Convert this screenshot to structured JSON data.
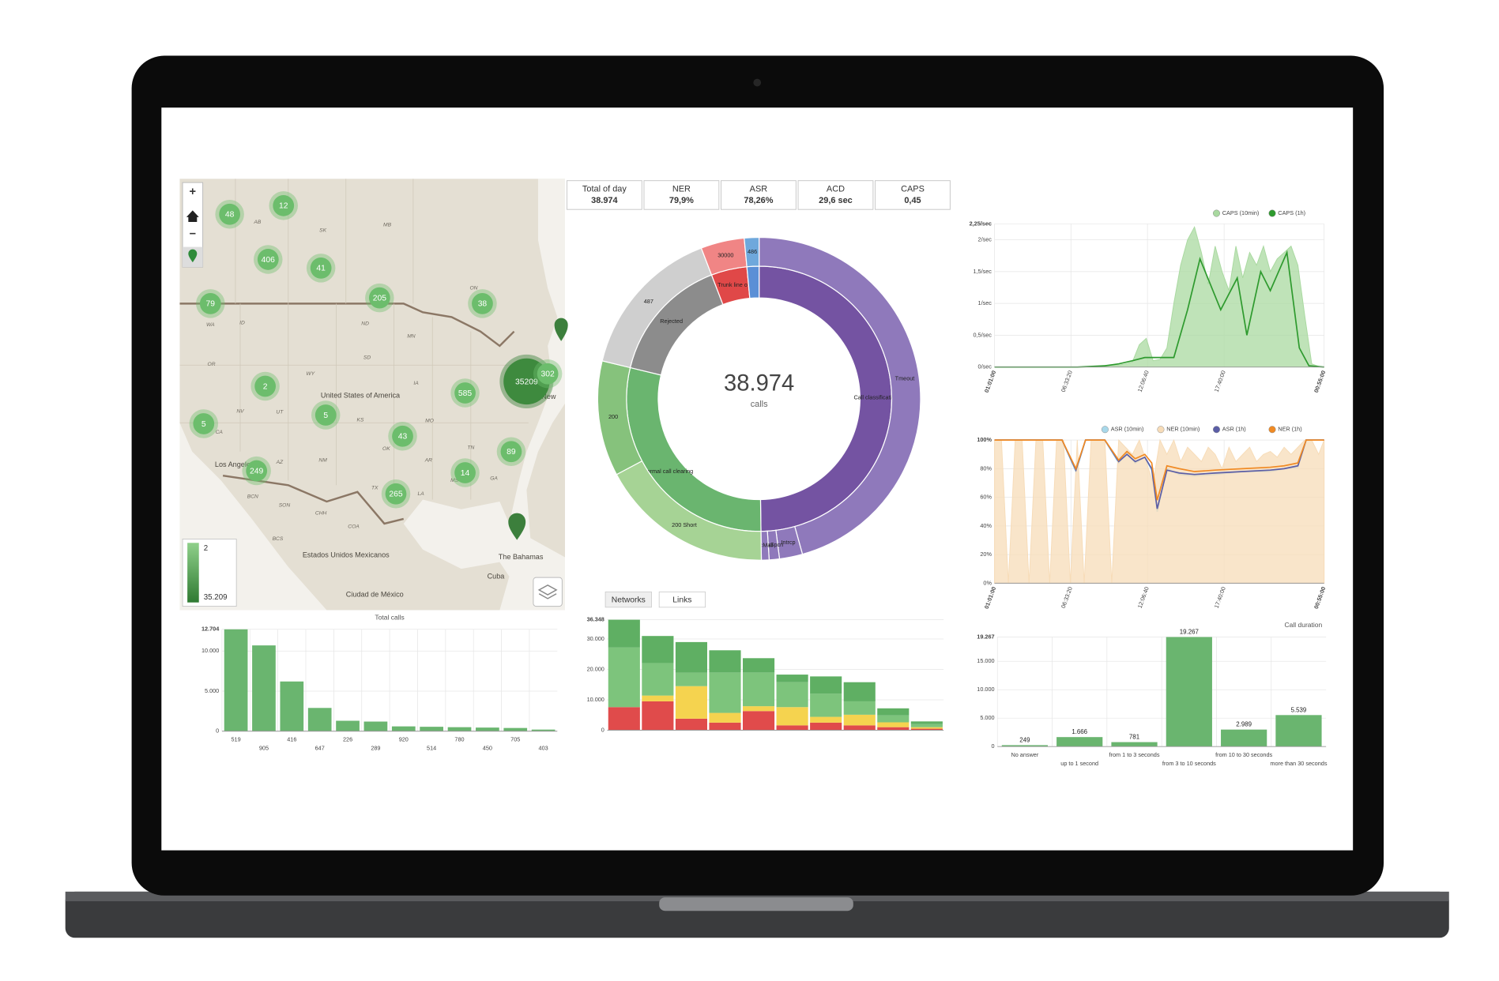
{
  "stats": [
    {
      "label": "Total of day",
      "value": "38.974"
    },
    {
      "label": "NER",
      "value": "79,9%"
    },
    {
      "label": "ASR",
      "value": "78,26%"
    },
    {
      "label": "ACD",
      "value": "29,6 sec"
    },
    {
      "label": "CAPS",
      "value": "0,45"
    }
  ],
  "map": {
    "clusters": [
      48,
      12,
      406,
      41,
      205,
      38,
      79,
      2,
      5,
      585,
      35209,
      302,
      5,
      43,
      89,
      14,
      249,
      265
    ],
    "places": [
      "AB",
      "SK",
      "MB",
      "ON",
      "WA",
      "ID",
      "ND",
      "MN",
      "OR",
      "SD",
      "WY",
      "IA",
      "NV",
      "UT",
      "KS",
      "MO",
      "CA",
      "OK",
      "AZ",
      "NM",
      "TN",
      "AR",
      "MS",
      "GA",
      "TX",
      "LA",
      "BCN",
      "SON",
      "CHH",
      "COA",
      "BCS",
      "United States of America",
      "Estados Unidos Mexicanos",
      "Ciudad de México",
      "Los Angeles",
      "The Bahamas",
      "Cuba",
      "New"
    ],
    "legend": {
      "min": "2",
      "max": "35.209"
    },
    "controls": [
      "+",
      "−"
    ]
  },
  "chart_data": [
    {
      "type": "bar",
      "title": "Total calls",
      "categories": [
        "519",
        "905",
        "416",
        "647",
        "226",
        "289",
        "920",
        "514",
        "780",
        "450",
        "705",
        "403"
      ],
      "values": [
        12704,
        10700,
        6200,
        2900,
        1300,
        1200,
        600,
        550,
        500,
        450,
        400,
        200
      ],
      "color": "#6ab56f",
      "ylim": [
        0,
        12704
      ],
      "yticks": [
        0,
        {
          "value": 5000,
          "label": "5.000"
        },
        {
          "value": 10000,
          "label": "10.000"
        },
        {
          "value": 12704,
          "label": "12.704"
        }
      ],
      "grid": true
    },
    {
      "type": "stacked_bar",
      "tabs": [
        "Networks",
        "Links"
      ],
      "series": [
        {
          "color": "#e04b4b",
          "values": [
            7600,
            9500,
            3800,
            2500,
            6300,
            1600,
            2500,
            1600,
            1000,
            500
          ]
        },
        {
          "color": "#f5d34f",
          "values": [
            0,
            1900,
            10700,
            3200,
            1600,
            6000,
            1900,
            3500,
            1600,
            500
          ]
        },
        {
          "color": "#7dc47c",
          "values": [
            19600,
            10700,
            4400,
            13300,
            11100,
            8200,
            7600,
            4400,
            2300,
            1000
          ]
        },
        {
          "color": "#5faf63",
          "values": [
            9148,
            8900,
            10100,
            7300,
            4700,
            2500,
            5700,
            6300,
            2300,
            900
          ]
        }
      ],
      "ylim": [
        0,
        36348
      ],
      "yticks": [
        0,
        {
          "value": 10000,
          "label": "10.000"
        },
        {
          "value": 20000,
          "label": "20.000"
        },
        {
          "value": 30000,
          "label": "30.000"
        },
        {
          "value": 36348,
          "label": "36.348"
        }
      ],
      "grid": true
    },
    {
      "type": "line",
      "series": [
        {
          "name": "CAPS (10min)",
          "color": "#a9d9a0",
          "style": "area",
          "x": [
            0,
            0.5,
            1,
            1.5,
            2,
            2.5,
            3,
            3.5,
            4,
            4.5,
            5,
            5.5,
            6,
            6.5,
            7,
            7.5,
            8,
            8.5,
            9,
            9.5,
            10,
            10.5,
            11,
            11.5,
            12,
            12.5,
            13,
            13.5,
            14,
            14.5,
            15,
            15.5,
            16,
            16.5,
            17,
            17.5,
            18,
            18.5,
            19,
            19.5,
            20,
            20.5,
            21,
            21.5,
            22,
            22.5,
            23,
            23.5,
            23.9
          ],
          "values": [
            0,
            0,
            0,
            0,
            0,
            0,
            0,
            0,
            0,
            0,
            0,
            0,
            0,
            0,
            0,
            0,
            0.02,
            0.03,
            0.03,
            0.05,
            0.08,
            0.35,
            0.45,
            0.1,
            0.12,
            0.3,
            1.0,
            1.6,
            2.0,
            2.2,
            1.8,
            1.3,
            1.9,
            1.5,
            1.2,
            1.9,
            1.4,
            1.8,
            1.6,
            1.9,
            1.5,
            1.7,
            1.8,
            1.9,
            1.6,
            0.8,
            0.05,
            0.01,
            0
          ]
        },
        {
          "name": "CAPS (1h)",
          "color": "#2e9a2e",
          "style": "line",
          "x": [
            0,
            2,
            4,
            6,
            8,
            9,
            10,
            10.9,
            12,
            13,
            14,
            14.9,
            16.4,
            17.6,
            18.3,
            19.3,
            20,
            21.2,
            22.1,
            22.8,
            23.9
          ],
          "values": [
            0,
            0,
            0,
            0,
            0.02,
            0.05,
            0.1,
            0.15,
            0.15,
            0.15,
            0.9,
            1.7,
            0.9,
            1.4,
            0.5,
            1.5,
            1.2,
            1.8,
            0.3,
            0.02,
            0
          ]
        }
      ],
      "xlim": [
        0,
        23.9
      ],
      "xticks": [
        {
          "value": 0,
          "label": "01:01:00"
        },
        {
          "value": 5.54,
          "label": "06:33:20"
        },
        {
          "value": 11.09,
          "label": "12:06:40"
        },
        {
          "value": 16.65,
          "label": "17:40:00"
        },
        {
          "value": 23.9,
          "label": "00:55:00"
        }
      ],
      "ylim": [
        0,
        2.25
      ],
      "yticks": [
        {
          "value": 0,
          "label": "0/sec"
        },
        {
          "value": 0.5,
          "label": "0,5/sec"
        },
        {
          "value": 1,
          "label": "1/sec"
        },
        {
          "value": 1.5,
          "label": "1,5/sec"
        },
        {
          "value": 2,
          "label": "2/sec"
        },
        {
          "value": 2.25,
          "label": "2,25/sec"
        }
      ],
      "grid": true
    },
    {
      "type": "line",
      "series": [
        {
          "name": "ASR (10min)",
          "color": "#a8d8ea",
          "style": "line",
          "x": [
            0,
            4.9,
            5.9,
            6.6,
            8,
            9,
            9.6,
            10.2,
            10.9,
            11.4,
            11.8,
            12.5,
            13.4,
            14.5,
            16,
            18,
            20,
            21,
            22,
            22.6,
            23.9
          ],
          "values": [
            100,
            100,
            78,
            100,
            100,
            84,
            91,
            84,
            88,
            79,
            50,
            80,
            76,
            75,
            76,
            78,
            78,
            80,
            81,
            100,
            100
          ]
        },
        {
          "name": "NER (10min)",
          "color": "#f7dcb8",
          "style": "area",
          "x": [
            0,
            0.5,
            1,
            1.5,
            2,
            2.5,
            3,
            3.5,
            4,
            4.5,
            5,
            5.5,
            6,
            6.5,
            7,
            7.5,
            8,
            8.5,
            9,
            9.5,
            10,
            10.5,
            11,
            11.5,
            12,
            12.5,
            13,
            13.5,
            14,
            14.5,
            15,
            15.5,
            16,
            16.5,
            17,
            17.5,
            18,
            18.5,
            19,
            19.5,
            20,
            20.5,
            21,
            21.5,
            22,
            22.5,
            23,
            23.5,
            23.9
          ],
          "values": [
            100,
            100,
            0,
            100,
            100,
            0,
            100,
            100,
            0,
            100,
            100,
            0,
            100,
            0,
            100,
            100,
            100,
            0,
            100,
            95,
            90,
            100,
            85,
            70,
            100,
            90,
            100,
            85,
            95,
            90,
            85,
            95,
            90,
            80,
            95,
            85,
            90,
            95,
            85,
            90,
            92,
            88,
            95,
            90,
            95,
            100,
            100,
            90,
            100
          ]
        },
        {
          "name": "ASR (1h)",
          "color": "#5b5ea6",
          "style": "line",
          "x": [
            0,
            4.9,
            5.9,
            6.6,
            8,
            9,
            9.6,
            10.2,
            10.9,
            11.4,
            11.8,
            12.5,
            13.4,
            14.5,
            16,
            18,
            20,
            21,
            22,
            22.6,
            23.9
          ],
          "values": [
            100,
            100,
            79,
            100,
            100,
            85,
            90,
            85,
            88,
            80,
            52,
            79,
            77,
            76,
            77,
            78,
            79,
            80,
            82,
            100,
            100
          ]
        },
        {
          "name": "NER (1h)",
          "color": "#f08a24",
          "style": "line",
          "x": [
            0,
            4.9,
            5.9,
            6.6,
            8,
            9,
            9.6,
            10.2,
            10.9,
            11.4,
            11.8,
            12.5,
            13.4,
            14.5,
            16,
            18,
            20,
            21,
            22,
            22.6,
            23.9
          ],
          "values": [
            100,
            100,
            80,
            100,
            100,
            86,
            92,
            87,
            90,
            84,
            58,
            82,
            80,
            78,
            79,
            80,
            81,
            82,
            84,
            100,
            100
          ]
        }
      ],
      "xlim": [
        0,
        23.9
      ],
      "xticks": [
        {
          "value": 0,
          "label": "01:01:00"
        },
        {
          "value": 5.54,
          "label": "06:33:20"
        },
        {
          "value": 11.09,
          "label": "12:06:40"
        },
        {
          "value": 16.65,
          "label": "17:40:00"
        },
        {
          "value": 23.9,
          "label": "00:55:00"
        }
      ],
      "ylim": [
        0,
        100
      ],
      "yticks": [
        {
          "value": 0,
          "label": "0%"
        },
        {
          "value": 20,
          "label": "20%"
        },
        {
          "value": 40,
          "label": "40%"
        },
        {
          "value": 60,
          "label": "60%"
        },
        {
          "value": 80,
          "label": "80%"
        },
        {
          "value": 100,
          "label": "100%"
        }
      ],
      "grid": true
    },
    {
      "type": "bar",
      "title": "Call duration",
      "categories": [
        "No answer",
        "up to 1 second",
        "from 1 to 3 seconds",
        "from 3 to 10 seconds",
        "from 10 to 30 seconds",
        "more than 30 seconds"
      ],
      "values": [
        249,
        1666,
        781,
        19267,
        2989,
        5539
      ],
      "value_labels": [
        "249",
        "1.666",
        "781",
        "19.267",
        "2.989",
        "5.539"
      ],
      "color": "#6ab56f",
      "ylim": [
        0,
        19267
      ],
      "yticks": [
        0,
        {
          "value": 5000,
          "label": "5.000"
        },
        {
          "value": 10000,
          "label": "10.000"
        },
        {
          "value": 15000,
          "label": "15.000"
        },
        {
          "value": 19267,
          "label": "19.267"
        }
      ],
      "grid": true
    },
    {
      "type": "sunburst",
      "center_value": "38.974",
      "center_label": "calls",
      "rings": [
        {
          "names": [
            "Call classification",
            "Normal call clearing",
            "Rejected",
            "Trunk line o",
            null
          ],
          "values": [
            19400,
            11300,
            6000,
            1700,
            574
          ],
          "colors": [
            "#7453a2",
            "#6ab56f",
            "#8c8c8c",
            "#e04848",
            "#5b8fd6"
          ]
        },
        {
          "names": [
            "Tmeout",
            "Intrcp",
            "NoSpcn",
            "VcMail",
            "200 Short",
            "200",
            "487",
            "30000",
            "486"
          ],
          "values": [
            17800,
            900,
            400,
            300,
            6800,
            4500,
            6000,
            1700,
            574
          ],
          "colors": [
            "#8f79bb",
            "#8f79bb",
            "#8f79bb",
            "#8f79bb",
            "#a6d395",
            "#86c27c",
            "#cfcfcf",
            "#f08585",
            "#6fa8dc"
          ]
        }
      ]
    }
  ]
}
